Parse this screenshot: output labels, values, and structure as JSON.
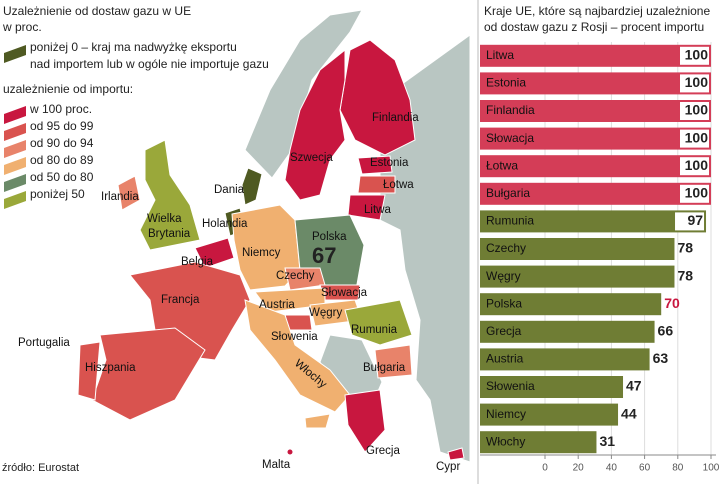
{
  "legend": {
    "title": [
      "Uzależnienie od dostaw gazu w UE",
      "w proc."
    ],
    "export_item": [
      "poniżej 0 – kraj ma nadwyżkę eksportu",
      "nad importem lub w ogóle nie importuje gazu"
    ],
    "import_heading": "uzależnienie od importu:",
    "items": [
      "w 100 proc.",
      "od 95 do 99",
      "od 90 do 94",
      "od 80 do 89",
      "od 50 do 80",
      "poniżej 50"
    ]
  },
  "map_labels": [
    "Finlandia",
    "Szwecja",
    "Estonia",
    "Łotwa",
    "Litwa",
    "Dania",
    "Irlandia",
    "Wielka",
    "Brytania",
    "Holandia",
    "Polska",
    "Belgia",
    "Niemcy",
    "Czechy",
    "Francja",
    "Słowacja",
    "Austria",
    "Węgry",
    "Rumunia",
    "Słowenia",
    "Portugalia",
    "Hiszpania",
    "Włochy",
    "Bułgaria",
    "Grecja",
    "Malta",
    "Cypr"
  ],
  "map_values": [
    67
  ],
  "source": "źródło: Eurostat",
  "chart_data": {
    "type": "hbar",
    "title": [
      "Kraje UE, które są najbardziej uzależnione",
      "od dostaw gazu z Rosji – procent importu"
    ],
    "categories": [
      "Litwa",
      "Estonia",
      "Finlandia",
      "Słowacja",
      "Łotwa",
      "Bułgaria",
      "Rumunia",
      "Czechy",
      "Węgry",
      "Polska",
      "Grecja",
      "Austria",
      "Słowenia",
      "Niemcy",
      "Włochy"
    ],
    "values": [
      100,
      100,
      100,
      100,
      100,
      100,
      97,
      78,
      78,
      70,
      66,
      63,
      47,
      44,
      31
    ],
    "colors": [
      "#d43d57",
      "#d43d57",
      "#d43d57",
      "#d43d57",
      "#d43d57",
      "#d43d57",
      "#6f7d34",
      "#6f7d34",
      "#6f7d34",
      "#6f7d34",
      "#6f7d34",
      "#6f7d34",
      "#6f7d34",
      "#6f7d34",
      "#6f7d34"
    ],
    "value_label_colors": [
      "#222",
      "#222",
      "#222",
      "#222",
      "#222",
      "#222",
      "#222",
      "#222",
      "#222",
      "#c8173f",
      "#222",
      "#222",
      "#222",
      "#222",
      "#222"
    ],
    "xlim": [
      0,
      100
    ],
    "xticks": [
      0,
      20,
      40,
      60,
      80,
      100
    ],
    "grid": true
  }
}
